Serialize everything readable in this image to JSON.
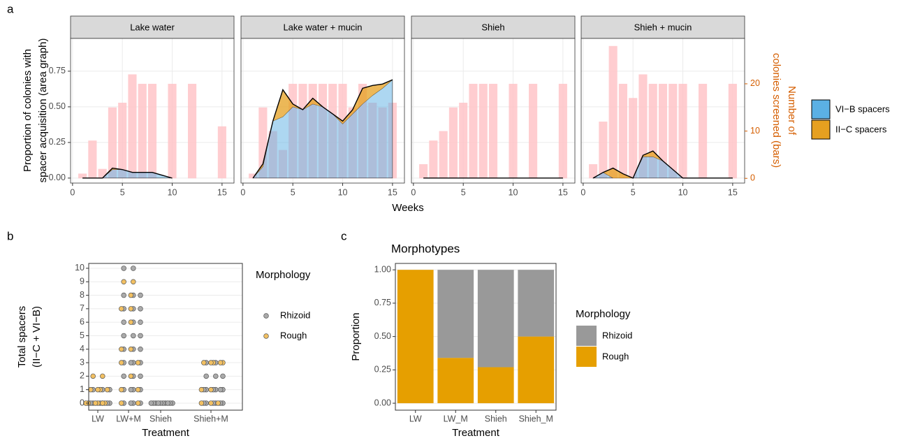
{
  "chart_data": [
    {
      "type": "facet_area_bar",
      "panel_label": "a",
      "xlabel": "Weeks",
      "ylabel": [
        "Proportion of colonies with",
        "spacer acquisition (area graph)"
      ],
      "y2label": [
        "Number of",
        "colonies screened (bars)"
      ],
      "xlim": [
        -0.2,
        16.2
      ],
      "xticks": [
        0,
        5,
        10,
        15
      ],
      "ylim": [
        -0.035,
        0.98
      ],
      "yticks": [
        {
          "value": 0,
          "label": "0.00"
        },
        {
          "value": 0.25,
          "label": "0.25"
        },
        {
          "value": 0.5,
          "label": "0.50"
        },
        {
          "value": 0.75,
          "label": "0.75"
        }
      ],
      "y2lim": [
        -1.0,
        29.6
      ],
      "y2ticks": [
        0,
        10,
        20
      ],
      "y2_color": "#d55e00",
      "bar_color": "#ffc4c8",
      "grid": true,
      "series": [
        {
          "name": "VI−B spacers",
          "color": "#5bb0e4"
        },
        {
          "name": "II−C spacers",
          "color": "#e6a020"
        }
      ],
      "facets": [
        {
          "title": "Lake water",
          "x": [
            1,
            2,
            3,
            4,
            5,
            6,
            7,
            8,
            9,
            10
          ],
          "series": [
            {
              "values": [
                0,
                0,
                0,
                0.06,
                0.06,
                0.04,
                0.04,
                0.04,
                0.02,
                0
              ]
            },
            {
              "values": [
                0,
                0,
                0,
                0.01,
                0,
                0,
                0,
                0,
                0,
                0
              ]
            }
          ],
          "bar_x": [
            1,
            2,
            3,
            4,
            5,
            6,
            7,
            8,
            10,
            12,
            15
          ],
          "bar_values": [
            1,
            8,
            2,
            15,
            16,
            22,
            20,
            20,
            20,
            20,
            11
          ]
        },
        {
          "title": "Lake water + mucin",
          "x": [
            1,
            2,
            3,
            4,
            5,
            6,
            7,
            8,
            9,
            10,
            11,
            12,
            13,
            14,
            15
          ],
          "series": [
            {
              "values": [
                0,
                0.08,
                0.4,
                0.43,
                0.5,
                0.48,
                0.52,
                0.5,
                0.45,
                0.38,
                0.45,
                0.52,
                0.58,
                0.63,
                0.69
              ]
            },
            {
              "values": [
                0,
                0.02,
                0,
                0.19,
                0.02,
                0,
                0.04,
                0,
                0,
                0.02,
                0.03,
                0.11,
                0.07,
                0.03,
                0
              ]
            }
          ],
          "bar_x": [
            1,
            2,
            3,
            4,
            5,
            6,
            7,
            8,
            9,
            10,
            11,
            12,
            13,
            14,
            15
          ],
          "bar_values": [
            1,
            15,
            10,
            6,
            20,
            20,
            20,
            20,
            20,
            20,
            15,
            20,
            16,
            15,
            16
          ]
        },
        {
          "title": "Shieh",
          "x": [
            1,
            2,
            3,
            4,
            5,
            6,
            7,
            8,
            9,
            10,
            11,
            12,
            13,
            14,
            15
          ],
          "series": [
            {
              "values": [
                0,
                0,
                0,
                0,
                0,
                0,
                0,
                0,
                0,
                0,
                0,
                0,
                0,
                0,
                0
              ]
            },
            {
              "values": [
                0,
                0,
                0,
                0,
                0,
                0,
                0,
                0,
                0,
                0,
                0,
                0,
                0,
                0,
                0
              ]
            }
          ],
          "bar_x": [
            1,
            2,
            3,
            4,
            5,
            6,
            7,
            8,
            10,
            12,
            15
          ],
          "bar_values": [
            3,
            8,
            10,
            15,
            16,
            20,
            20,
            20,
            20,
            20,
            20
          ]
        },
        {
          "title": "Shieh + mucin",
          "x": [
            1,
            2,
            3,
            4,
            5,
            6,
            7,
            8,
            9,
            10,
            11,
            12,
            13,
            14,
            15
          ],
          "series": [
            {
              "values": [
                0,
                0.04,
                0,
                0,
                0,
                0.15,
                0.15,
                0.12,
                0.06,
                0,
                0,
                0,
                0,
                0,
                0
              ]
            },
            {
              "values": [
                0,
                0,
                0.07,
                0.03,
                0,
                0.01,
                0.04,
                0,
                0,
                0,
                0,
                0,
                0,
                0,
                0
              ]
            }
          ],
          "bar_x": [
            1,
            2,
            3,
            4,
            5,
            6,
            7,
            8,
            9,
            10,
            12,
            15
          ],
          "bar_values": [
            3,
            12,
            28,
            20,
            17,
            22,
            20,
            20,
            20,
            20,
            20,
            20
          ]
        }
      ]
    },
    {
      "type": "strip",
      "panel_label": "b",
      "xlabel": "Treatment",
      "ylabel": [
        "Total spacers",
        "(II−C + VI−B)"
      ],
      "categories": [
        "LW",
        "LW+M",
        "Shieh",
        "Shieh+M"
      ],
      "ylim": [
        -0.52,
        10.36
      ],
      "yticks": [
        0,
        1,
        2,
        3,
        4,
        5,
        6,
        7,
        8,
        9,
        10
      ],
      "grid": true,
      "legend_title": "Morphology",
      "series": [
        {
          "name": "Rhizoid",
          "color": "#aaaaaa",
          "values": [
            [
              0,
              0,
              0,
              0,
              0,
              0,
              1,
              1,
              1
            ],
            [
              0,
              0,
              0,
              0,
              1,
              1,
              1,
              1,
              2,
              2,
              2,
              3,
              3,
              3,
              3,
              4,
              4,
              4,
              5,
              5,
              5,
              6,
              6,
              6,
              7,
              7,
              7,
              8,
              8,
              8,
              10,
              10
            ],
            [
              0,
              0,
              0,
              0,
              0,
              0,
              0,
              0,
              0,
              0
            ],
            [
              0,
              0,
              0,
              0,
              0,
              0,
              1,
              1,
              1,
              1,
              1,
              1,
              2,
              2,
              2,
              3,
              3
            ]
          ]
        },
        {
          "name": "Rough",
          "color": "#f2c062",
          "values": [
            [
              0,
              0,
              0,
              0,
              0,
              0,
              1,
              1,
              1,
              1,
              2,
              2
            ],
            [
              0,
              0,
              1,
              1,
              2,
              3,
              3,
              4,
              4,
              6,
              7,
              7,
              8,
              9,
              9
            ],
            [],
            [
              0,
              0,
              0,
              1,
              1,
              3,
              3,
              3,
              3,
              3
            ]
          ]
        }
      ]
    },
    {
      "type": "stacked_bar",
      "panel_label": "c",
      "title": "Morphotypes",
      "xlabel": "Treatment",
      "ylabel": "Proportion",
      "categories": [
        "LW",
        "LW_M",
        "Shieh",
        "Shieh_M"
      ],
      "ylim": [
        -0.052,
        1.048
      ],
      "yticks": [
        {
          "value": 0,
          "label": "0.00"
        },
        {
          "value": 0.25,
          "label": "0.25"
        },
        {
          "value": 0.5,
          "label": "0.50"
        },
        {
          "value": 0.75,
          "label": "0.75"
        },
        {
          "value": 1,
          "label": "1.00"
        }
      ],
      "grid": true,
      "legend_title": "Morphology",
      "series": [
        {
          "name": "Rhizoid",
          "color": "#999999",
          "values": [
            0,
            0.66,
            0.73,
            0.5
          ]
        },
        {
          "name": "Rough",
          "color": "#e69f00",
          "values": [
            1,
            0.34,
            0.27,
            0.5
          ]
        }
      ]
    }
  ]
}
